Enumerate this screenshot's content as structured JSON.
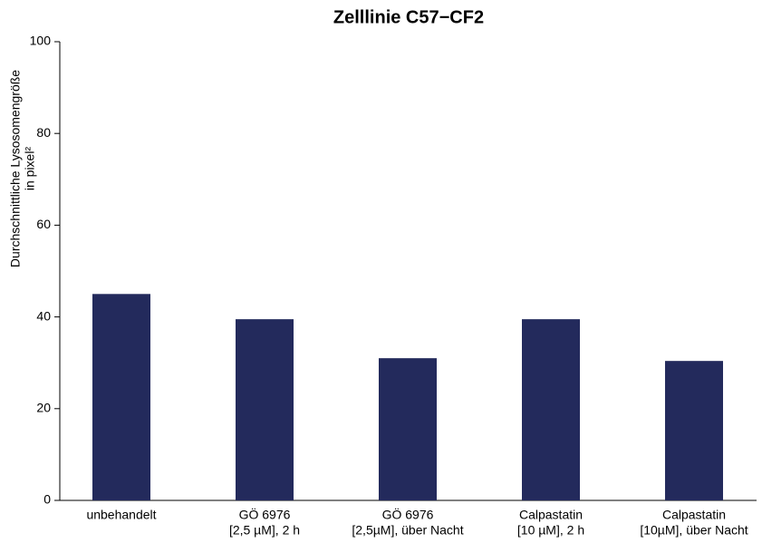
{
  "chart_data": {
    "type": "bar",
    "title": "Zelllinie C57−CF2",
    "ylabel": [
      "Durchschnittliche Lysosomengröße",
      "in pixel²"
    ],
    "categories": [
      [
        "unbehandelt"
      ],
      [
        "GÖ 6976",
        "[2,5 µM], 2 h"
      ],
      [
        "GÖ 6976",
        "[2,5µM], über Nacht"
      ],
      [
        "Calpastatin",
        "[10 µM], 2 h"
      ],
      [
        "Calpastatin",
        "[10µM], über Nacht"
      ]
    ],
    "values": [
      45,
      39.5,
      31,
      39.5,
      30.4
    ],
    "color": "#232a5c",
    "ylim": [
      0,
      100
    ],
    "yticks": [
      0,
      20,
      40,
      60,
      80,
      100
    ],
    "grid": false
  }
}
